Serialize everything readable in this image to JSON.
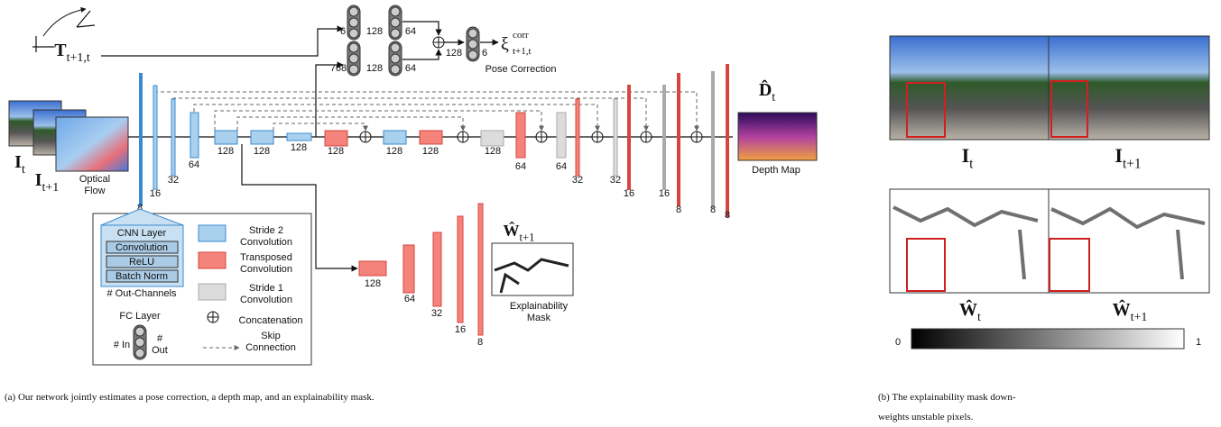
{
  "pose": {
    "input": {
      "symbol": "T",
      "sub": "t+1,t"
    },
    "fc_top": [
      6,
      128,
      64
    ],
    "fc_bottom": [
      768,
      128,
      64
    ],
    "fc_out": [
      128,
      6
    ],
    "output": {
      "symbol": "ξ",
      "sup": "corr",
      "sub": "t+1,t"
    },
    "label": "Pose Correction"
  },
  "inputs": {
    "frame_t": {
      "symbol": "I",
      "sub": "t"
    },
    "frame_t1": {
      "symbol": "I",
      "sub": "t+1"
    },
    "flow_label": [
      "Optical",
      "Flow"
    ]
  },
  "encoder": [
    8,
    16,
    32,
    64,
    128,
    128,
    128
  ],
  "decoder": [
    128,
    128,
    128,
    128,
    64,
    64,
    32,
    32,
    16,
    16,
    8,
    8,
    8
  ],
  "depth": {
    "symbol": "D̂",
    "sub": "t",
    "label": "Depth Map"
  },
  "mask_branch": {
    "channels": [
      128,
      64,
      32,
      16,
      8
    ],
    "symbol": "Ŵ",
    "sub": "t+1",
    "label": [
      "Explainability",
      "Mask"
    ]
  },
  "legend": {
    "cnn_title": "CNN Layer",
    "cnn_parts": [
      "Convolution",
      "ReLU",
      "Batch Norm"
    ],
    "out_channels": "# Out-Channels",
    "stride2": [
      "Stride 2",
      "Convolution"
    ],
    "transposed": [
      "Transposed",
      "Convolution"
    ],
    "stride1": [
      "Stride 1",
      "Convolution"
    ],
    "concat": "Concatenation",
    "fc_title": "FC Layer",
    "fc_in": "# In",
    "fc_out": [
      "#",
      "Out"
    ],
    "skip": [
      "Skip",
      "Connection"
    ]
  },
  "right": {
    "frame_t": {
      "symbol": "I",
      "sub": "t"
    },
    "frame_t1": {
      "symbol": "I",
      "sub": "t+1"
    },
    "mask_t": {
      "symbol": "Ŵ",
      "sub": "t"
    },
    "mask_t1": {
      "symbol": "Ŵ",
      "sub": "t+1"
    },
    "colorbar": {
      "min": "0",
      "max": "1"
    }
  },
  "captions": {
    "a": "(a) Our network jointly estimates a pose correction, a depth map, and an explainability mask.",
    "b": [
      "(b) The explainability mask down-",
      "weights unstable pixels."
    ]
  }
}
